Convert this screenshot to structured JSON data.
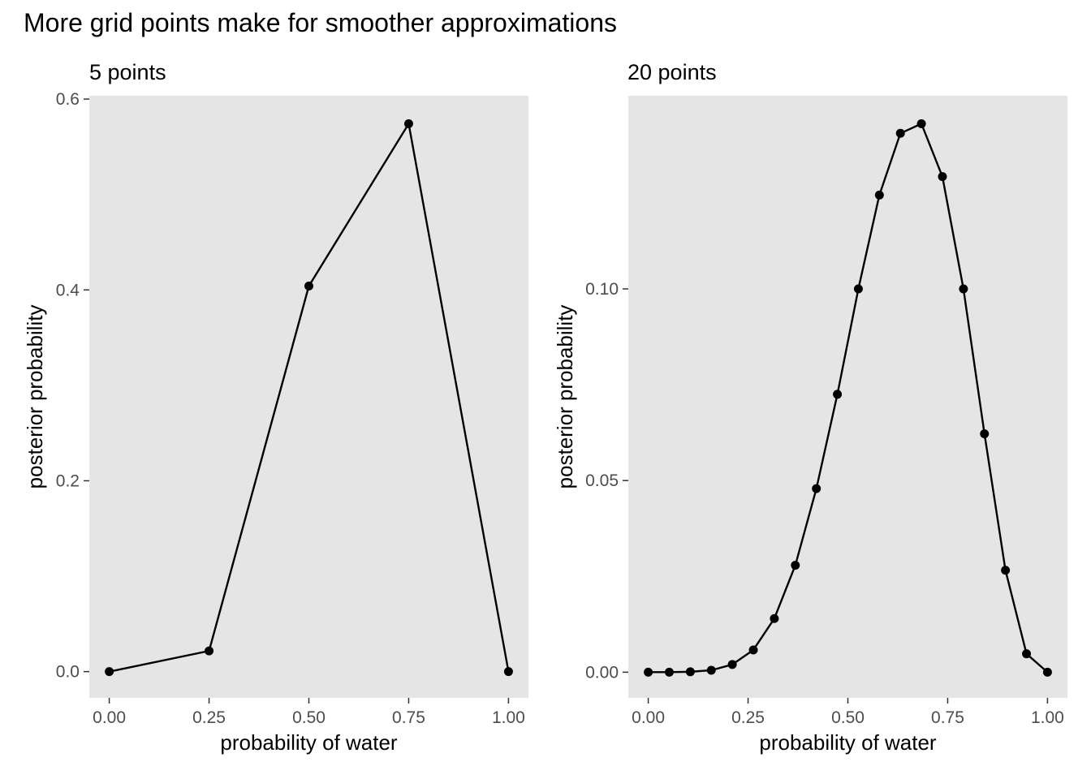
{
  "title": "More grid points make for smoother approximations",
  "colors": {
    "panel_background": "#e5e5e5",
    "line": "#000000",
    "tick_label": "#4d4d4d"
  },
  "chart_data": [
    {
      "type": "line",
      "subtitle": "5 points",
      "xlabel": "probability of water",
      "ylabel": "posterior probability",
      "xlim": [
        -0.05,
        1.05
      ],
      "ylim": [
        -0.0275,
        0.6035
      ],
      "grid": false,
      "x_ticks": [
        0,
        0.25,
        0.5,
        0.75,
        1
      ],
      "x_tick_labels": [
        "0.00",
        "0.25",
        "0.50",
        "0.75",
        "1.00"
      ],
      "y_ticks": [
        0,
        0.2,
        0.4,
        0.6
      ],
      "y_tick_labels": [
        "0.0",
        "0.2",
        "0.4",
        "0.6"
      ],
      "x": [
        0,
        0.25,
        0.5,
        0.75,
        1
      ],
      "y": [
        0,
        0.0217,
        0.4041,
        0.5742,
        0
      ]
    },
    {
      "type": "line",
      "subtitle": "20 points",
      "xlabel": "probability of water",
      "ylabel": "posterior probability",
      "xlim": [
        -0.05,
        1.05
      ],
      "ylim": [
        -0.0067,
        0.1504
      ],
      "grid": false,
      "x_ticks": [
        0,
        0.25,
        0.5,
        0.75,
        1
      ],
      "x_tick_labels": [
        "0.00",
        "0.25",
        "0.50",
        "0.75",
        "1.00"
      ],
      "y_ticks": [
        0,
        0.05,
        0.1
      ],
      "y_tick_labels": [
        "0.00",
        "0.05",
        "0.10"
      ],
      "x": [
        0,
        0.0526,
        0.1053,
        0.1579,
        0.2105,
        0.2632,
        0.3158,
        0.3684,
        0.4211,
        0.4737,
        0.5263,
        0.5789,
        0.6316,
        0.6842,
        0.7368,
        0.7895,
        0.8421,
        0.8947,
        0.9474,
        1
      ],
      "y": [
        0,
        0.0,
        0.0001,
        0.0005,
        0.002,
        0.0058,
        0.014,
        0.0279,
        0.0479,
        0.0725,
        0.1,
        0.1245,
        0.1406,
        0.1431,
        0.1293,
        0.1,
        0.0622,
        0.0266,
        0.0048,
        0
      ]
    }
  ]
}
